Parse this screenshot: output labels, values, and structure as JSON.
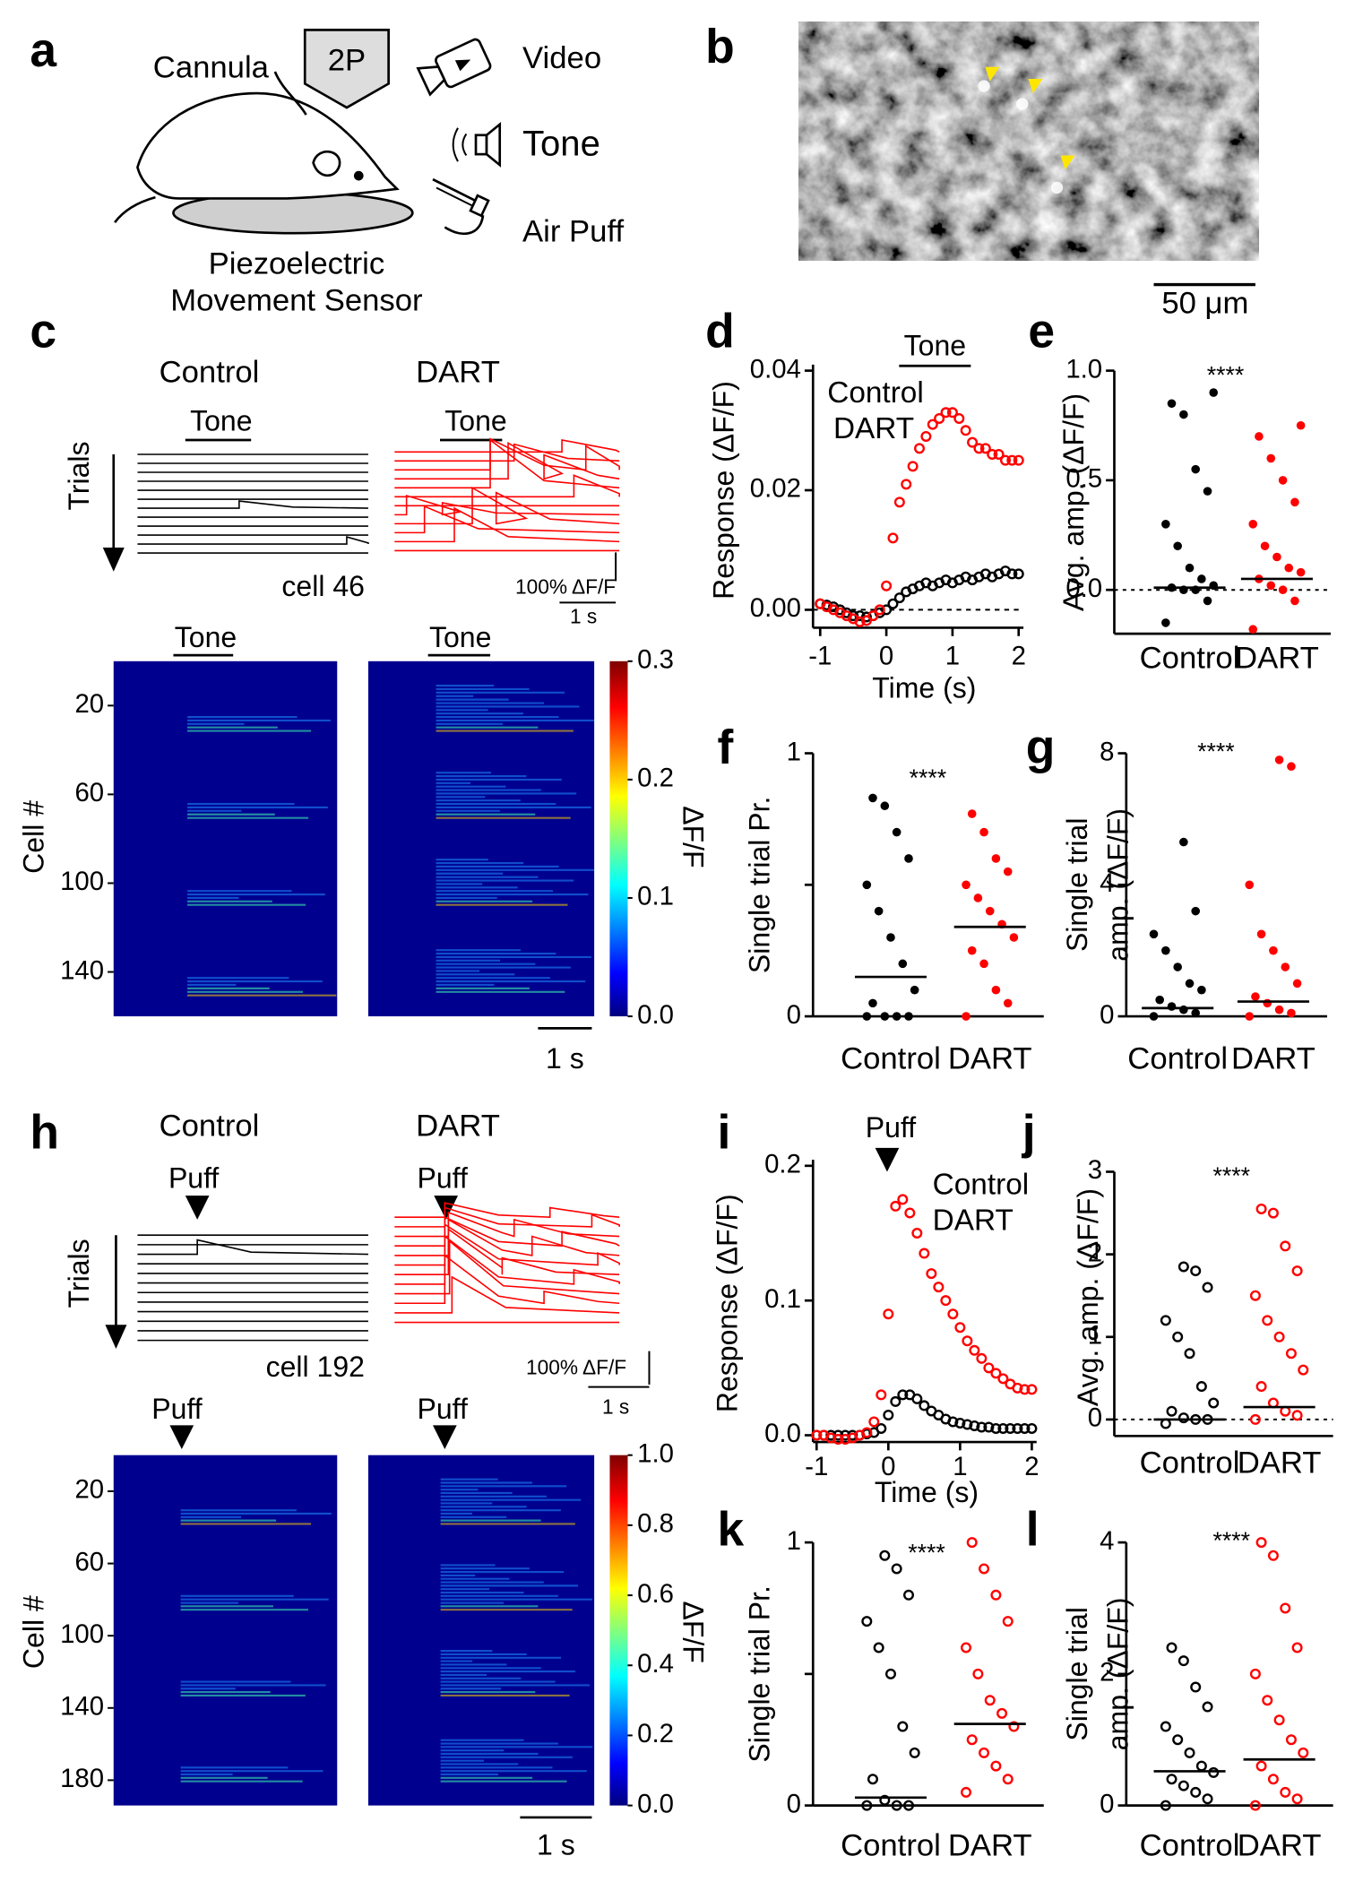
{
  "panel_labels": [
    "a",
    "b",
    "c",
    "d",
    "e",
    "f",
    "g",
    "h",
    "i",
    "j",
    "k",
    "l"
  ],
  "schematic": {
    "imaging": "2P",
    "cannula": "Cannula",
    "video": "Video",
    "tone": "Tone",
    "air_puff": "Air Puff",
    "sensor": [
      "Piezoelectric",
      "Movement Sensor"
    ]
  },
  "image": {
    "scale_bar": "50 μm"
  },
  "traces": [
    {
      "conditions": [
        "Control",
        "DART"
      ],
      "event": "Tone",
      "trials": "Trials",
      "cell": "cell 46",
      "scale_y": "100% ΔF/F",
      "scale_x": "1 s"
    },
    {
      "conditions": [
        "Control",
        "DART"
      ],
      "event": "Puff",
      "trials": "Trials",
      "cell": "cell 192",
      "scale_y": "100% ΔF/F",
      "scale_x": "1 s"
    }
  ],
  "chart_data": [
    {
      "type": "heatmap",
      "event": "Tone",
      "ylabel": "Cell #",
      "ylim": [
        0,
        160
      ],
      "yticks": [
        20,
        60,
        100,
        140
      ],
      "colorbar": {
        "label": "ΔF/F",
        "lim": [
          0,
          0.3
        ],
        "ticks": [
          {
            "value": 0,
            "label": "0.0"
          },
          {
            "value": 0.1,
            "label": "0.1"
          },
          {
            "value": 0.2,
            "label": "0.2"
          },
          {
            "value": 0.3,
            "label": "0.3"
          }
        ]
      },
      "scale_bar": "1 s"
    },
    {
      "type": "heatmap",
      "event": "Puff",
      "ylabel": "Cell #",
      "ylim": [
        0,
        194
      ],
      "yticks": [
        20,
        60,
        100,
        140,
        180
      ],
      "colorbar": {
        "label": "ΔF/F",
        "lim": [
          0,
          1
        ],
        "ticks": [
          {
            "value": 0,
            "label": "0.0"
          },
          {
            "value": 0.2,
            "label": "0.2"
          },
          {
            "value": 0.4,
            "label": "0.4"
          },
          {
            "value": 0.6,
            "label": "0.6"
          },
          {
            "value": 0.8,
            "label": "0.8"
          },
          {
            "value": 1,
            "label": "1.0"
          }
        ]
      },
      "scale_bar": "1 s"
    },
    {
      "type": "line",
      "event": "Tone",
      "xlabel": "Time (s)",
      "ylabel": "Response (ΔF/F)",
      "x": [
        -1,
        -0.9,
        -0.8,
        -0.7,
        -0.6,
        -0.5,
        -0.4,
        -0.3,
        -0.2,
        -0.1,
        0,
        0.1,
        0.2,
        0.3,
        0.4,
        0.5,
        0.6,
        0.7,
        0.8,
        0.9,
        1,
        1.1,
        1.2,
        1.3,
        1.4,
        1.5,
        1.6,
        1.7,
        1.8,
        1.9,
        2
      ],
      "series": [
        {
          "name": "Control",
          "color": "#000000",
          "values": [
            0.001,
            0.0008,
            0.0005,
            0,
            -0.0005,
            -0.001,
            -0.001,
            -0.0012,
            -0.001,
            -0.0005,
            0,
            0.001,
            0.002,
            0.003,
            0.0035,
            0.004,
            0.0045,
            0.004,
            0.0045,
            0.005,
            0.0045,
            0.005,
            0.0055,
            0.005,
            0.0055,
            0.006,
            0.0055,
            0.006,
            0.0065,
            0.006,
            0.006
          ]
        },
        {
          "name": "DART",
          "color": "#ff0000",
          "values": [
            0.001,
            0.0005,
            0,
            -0.0005,
            -0.001,
            -0.0015,
            -0.002,
            -0.0018,
            -0.001,
            0,
            0.004,
            0.012,
            0.018,
            0.021,
            0.024,
            0.027,
            0.029,
            0.031,
            0.032,
            0.033,
            0.033,
            0.032,
            0.03,
            0.028,
            0.027,
            0.027,
            0.026,
            0.026,
            0.025,
            0.025,
            0.025
          ]
        }
      ],
      "xlim": [
        -1,
        2
      ],
      "xticks": [
        -1,
        0,
        1,
        2
      ],
      "ylim": [
        -0.003,
        0.04
      ],
      "yticks": [
        {
          "value": 0,
          "label": "0.00"
        },
        {
          "value": 0.02,
          "label": "0.02"
        },
        {
          "value": 0.04,
          "label": "0.04"
        }
      ],
      "zero_line": true
    },
    {
      "type": "strip",
      "ylabel": "Avg. amp. (ΔF/F)",
      "annotation": "****",
      "categories": [
        "Control",
        "DART"
      ],
      "marker": "filled",
      "groups": [
        {
          "color": "#000000",
          "mean": 0.01,
          "values": [
            -0.15,
            -0.05,
            0,
            0,
            0.01,
            0.02,
            0.05,
            0.1,
            0.2,
            0.3,
            0.45,
            0.55,
            0.8,
            0.85,
            0.9
          ]
        },
        {
          "color": "#ff0000",
          "mean": 0.05,
          "values": [
            -0.18,
            -0.05,
            0,
            0.02,
            0.05,
            0.08,
            0.1,
            0.15,
            0.2,
            0.3,
            0.4,
            0.5,
            0.6,
            0.7,
            0.75
          ]
        }
      ],
      "ylim": [
        -0.2,
        1
      ],
      "yticks": [
        {
          "value": 0,
          "label": "0.0"
        },
        {
          "value": 0.5,
          "label": "0.5"
        },
        {
          "value": 1,
          "label": "1.0"
        }
      ],
      "zero_line": true
    },
    {
      "type": "strip",
      "ylabel": "Single trial Pr.",
      "annotation": "****",
      "categories": [
        "Control",
        "DART"
      ],
      "marker": "filled",
      "groups": [
        {
          "color": "#000000",
          "mean": 0.15,
          "values": [
            0,
            0,
            0,
            0,
            0.05,
            0.1,
            0.2,
            0.3,
            0.4,
            0.5,
            0.6,
            0.7,
            0.8,
            0.83
          ]
        },
        {
          "color": "#ff0000",
          "mean": 0.34,
          "values": [
            0,
            0.05,
            0.1,
            0.2,
            0.25,
            0.3,
            0.35,
            0.4,
            0.45,
            0.5,
            0.55,
            0.6,
            0.7,
            0.77
          ]
        }
      ],
      "ylim": [
        0,
        1
      ],
      "yticks": [
        0,
        1
      ],
      "minor_yticks": [
        0.5
      ]
    },
    {
      "type": "strip",
      "ylabel": [
        "Single trial",
        "amp. (ΔF/F)"
      ],
      "annotation": "****",
      "categories": [
        "Control",
        "DART"
      ],
      "marker": "filled",
      "groups": [
        {
          "color": "#000000",
          "mean": 0.25,
          "values": [
            0,
            0.1,
            0.2,
            0.3,
            0.5,
            0.8,
            1,
            1.5,
            2,
            2.5,
            3.2,
            5.3
          ]
        },
        {
          "color": "#ff0000",
          "mean": 0.45,
          "values": [
            0,
            0.1,
            0.2,
            0.4,
            0.6,
            1,
            1.5,
            2,
            2.5,
            4,
            7.6,
            7.8
          ]
        }
      ],
      "ylim": [
        0,
        8
      ],
      "yticks": [
        0,
        4,
        8
      ]
    },
    {
      "type": "line",
      "event": "Puff",
      "xlabel": "Time (s)",
      "ylabel": "Response (ΔF/F)",
      "x": [
        -1,
        -0.9,
        -0.8,
        -0.7,
        -0.6,
        -0.5,
        -0.4,
        -0.3,
        -0.2,
        -0.1,
        0,
        0.1,
        0.2,
        0.3,
        0.4,
        0.5,
        0.6,
        0.7,
        0.8,
        0.9,
        1,
        1.1,
        1.2,
        1.3,
        1.4,
        1.5,
        1.6,
        1.7,
        1.8,
        1.9,
        2
      ],
      "series": [
        {
          "name": "Control",
          "color": "#000000",
          "values": [
            0,
            0,
            0,
            0,
            0,
            0,
            0,
            0.001,
            0.002,
            0.005,
            0.015,
            0.025,
            0.03,
            0.03,
            0.027,
            0.022,
            0.018,
            0.015,
            0.012,
            0.01,
            0.009,
            0.008,
            0.007,
            0.006,
            0.006,
            0.005,
            0.005,
            0.005,
            0.005,
            0.005,
            0.005
          ]
        },
        {
          "name": "DART",
          "color": "#ff0000",
          "values": [
            0,
            0,
            -0.002,
            -0.003,
            -0.003,
            -0.002,
            0,
            0.002,
            0.01,
            0.03,
            0.09,
            0.17,
            0.175,
            0.165,
            0.15,
            0.135,
            0.12,
            0.11,
            0.1,
            0.09,
            0.08,
            0.07,
            0.063,
            0.057,
            0.05,
            0.046,
            0.042,
            0.038,
            0.035,
            0.034,
            0.034
          ]
        }
      ],
      "xlim": [
        -1,
        2
      ],
      "xticks": [
        -1,
        0,
        1,
        2
      ],
      "ylim": [
        -0.005,
        0.2
      ],
      "yticks": [
        {
          "value": 0,
          "label": "0.0"
        },
        {
          "value": 0.1,
          "label": "0.1"
        },
        {
          "value": 0.2,
          "label": "0.2"
        }
      ]
    },
    {
      "type": "strip",
      "ylabel": "Avg. amp. (ΔF/F)",
      "annotation": "****",
      "categories": [
        "Control",
        "DART"
      ],
      "marker": "open",
      "groups": [
        {
          "color": "#000000",
          "mean": 0,
          "values": [
            -0.05,
            0,
            0,
            0.02,
            0.1,
            0.2,
            0.4,
            0.8,
            1,
            1.2,
            1.6,
            1.8,
            1.85
          ]
        },
        {
          "color": "#ff0000",
          "mean": 0.15,
          "values": [
            0,
            0.05,
            0.1,
            0.2,
            0.4,
            0.6,
            0.8,
            1,
            1.2,
            1.5,
            1.8,
            2.1,
            2.5,
            2.55
          ]
        }
      ],
      "ylim": [
        -0.2,
        3
      ],
      "yticks": [
        0,
        1,
        2,
        3
      ],
      "zero_line": true
    },
    {
      "type": "strip",
      "ylabel": "Single trial Pr.",
      "annotation": "****",
      "categories": [
        "Control",
        "DART"
      ],
      "marker": "open",
      "groups": [
        {
          "color": "#000000",
          "mean": 0.03,
          "values": [
            0,
            0,
            0,
            0.02,
            0.1,
            0.2,
            0.3,
            0.5,
            0.6,
            0.7,
            0.8,
            0.9,
            0.95
          ]
        },
        {
          "color": "#ff0000",
          "mean": 0.31,
          "values": [
            0.05,
            0.1,
            0.15,
            0.2,
            0.25,
            0.3,
            0.35,
            0.4,
            0.5,
            0.6,
            0.7,
            0.8,
            0.9,
            1
          ]
        }
      ],
      "ylim": [
        0,
        1
      ],
      "yticks": [
        0,
        1
      ],
      "minor_yticks": [
        0.5
      ]
    },
    {
      "type": "strip",
      "ylabel": [
        "Single trial",
        "amp. (ΔF/F)"
      ],
      "annotation": "****",
      "categories": [
        "Control",
        "DART"
      ],
      "marker": "open",
      "groups": [
        {
          "color": "#000000",
          "mean": 0.52,
          "values": [
            0,
            0.1,
            0.2,
            0.3,
            0.4,
            0.5,
            0.6,
            0.8,
            1,
            1.2,
            1.5,
            1.8,
            2.2,
            2.4
          ]
        },
        {
          "color": "#ff0000",
          "mean": 0.7,
          "values": [
            0,
            0.1,
            0.2,
            0.4,
            0.6,
            0.8,
            1,
            1.3,
            1.6,
            2,
            2.4,
            3,
            3.8,
            4
          ]
        }
      ],
      "ylim": [
        0,
        4
      ],
      "yticks": [
        0,
        2,
        4
      ]
    }
  ]
}
